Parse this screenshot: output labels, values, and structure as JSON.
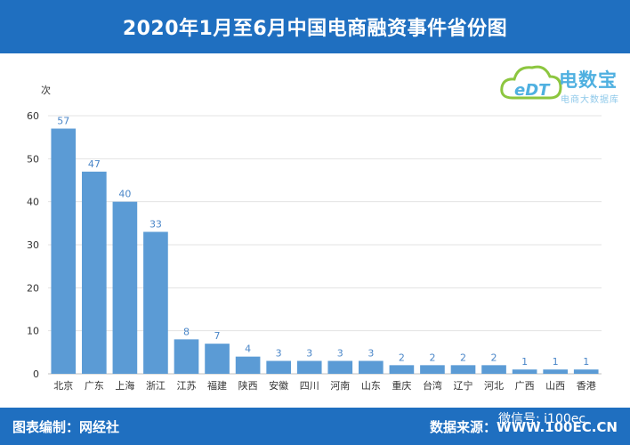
{
  "header": {
    "title": "2020年1月至6月中国电商融资事件省份图"
  },
  "logo": {
    "name": "电数宝",
    "sub": "电商大数据库",
    "mark": "eDT"
  },
  "footer": {
    "left": "图表编制：网经社",
    "right": "数据来源：WWW.100EC.CN",
    "wechat": "微信号: i100ec"
  },
  "colors": {
    "header_bg": "#1f6fc0",
    "bar": "#5b9bd5",
    "label": "#4a86c8"
  },
  "chart_data": {
    "type": "bar",
    "title": "2020年1月至6月中国电商融资事件省份图",
    "ylabel": "次",
    "xlabel": "",
    "ylim": [
      0,
      60
    ],
    "yticks": [
      0,
      10,
      20,
      30,
      40,
      50,
      60
    ],
    "grid": true,
    "categories": [
      "北京",
      "广东",
      "上海",
      "浙江",
      "江苏",
      "福建",
      "陕西",
      "安徽",
      "四川",
      "河南",
      "山东",
      "重庆",
      "台湾",
      "辽宁",
      "河北",
      "广西",
      "山西",
      "香港"
    ],
    "values": [
      57,
      47,
      40,
      33,
      8,
      7,
      4,
      3,
      3,
      3,
      3,
      2,
      2,
      2,
      2,
      1,
      1,
      1
    ]
  }
}
